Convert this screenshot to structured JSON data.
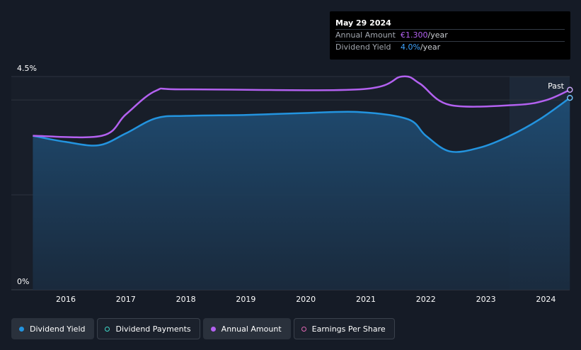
{
  "chart_data": {
    "type": "area",
    "x_ticks": [
      "2016",
      "2017",
      "2018",
      "2019",
      "2020",
      "2021",
      "2022",
      "2023",
      "2024"
    ],
    "y_ticks": [
      "0%",
      "4.5%"
    ],
    "ylim": [
      0,
      4.5
    ],
    "region_label": "Past",
    "series": [
      {
        "name": "Dividend Yield",
        "color": "#2394df",
        "points": [
          [
            2015.45,
            3.25
          ],
          [
            2016.0,
            3.12
          ],
          [
            2016.55,
            3.05
          ],
          [
            2017.0,
            3.3
          ],
          [
            2017.5,
            3.62
          ],
          [
            2018.0,
            3.67
          ],
          [
            2019.0,
            3.69
          ],
          [
            2020.0,
            3.73
          ],
          [
            2020.9,
            3.75
          ],
          [
            2021.7,
            3.6
          ],
          [
            2022.0,
            3.25
          ],
          [
            2022.4,
            2.92
          ],
          [
            2022.9,
            3.0
          ],
          [
            2023.4,
            3.25
          ],
          [
            2023.9,
            3.6
          ],
          [
            2024.4,
            4.05
          ]
        ]
      },
      {
        "name": "Annual Amount",
        "color": "#b361f0",
        "points": [
          [
            2015.45,
            3.25
          ],
          [
            2016.6,
            3.25
          ],
          [
            2017.0,
            3.7
          ],
          [
            2017.5,
            4.2
          ],
          [
            2018.0,
            4.23
          ],
          [
            2020.9,
            4.23
          ],
          [
            2021.6,
            4.5
          ],
          [
            2021.9,
            4.35
          ],
          [
            2022.4,
            3.9
          ],
          [
            2023.5,
            3.9
          ],
          [
            2024.0,
            4.0
          ],
          [
            2024.4,
            4.22
          ]
        ]
      }
    ],
    "legend": [
      {
        "label": "Dividend Yield",
        "marker": "filled",
        "color": "#2394df"
      },
      {
        "label": "Dividend Payments",
        "marker": "ring",
        "color": "#3fd7c7"
      },
      {
        "label": "Annual Amount",
        "marker": "filled",
        "color": "#b361f0"
      },
      {
        "label": "Earnings Per Share",
        "marker": "ring",
        "color": "#e066b3"
      }
    ]
  },
  "tooltip": {
    "date": "May 29 2024",
    "rows": [
      {
        "label": "Annual Amount",
        "value": "€1.300",
        "unit": "/year"
      },
      {
        "label": "Dividend Yield",
        "value": "4.0%",
        "unit": "/year"
      }
    ]
  }
}
